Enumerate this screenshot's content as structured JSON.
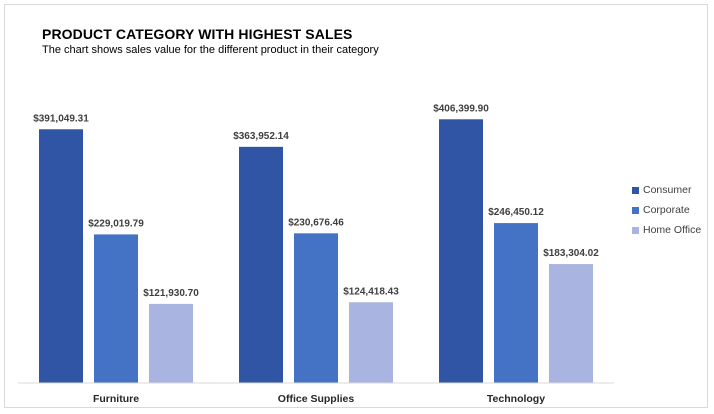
{
  "chart_data": {
    "type": "bar",
    "title": "PRODUCT CATEGORY WITH HIGHEST SALES",
    "subtitle": "The chart shows sales value for the different product in their category",
    "categories": [
      "Furniture",
      "Office Supplies",
      "Technology"
    ],
    "series": [
      {
        "name": "Consumer",
        "color": "#2f55a4",
        "values": [
          391049.31,
          363952.14,
          406399.9
        ],
        "labels": [
          "$391,049.31",
          "$363,952.14",
          "$406,399.90"
        ]
      },
      {
        "name": "Corporate",
        "color": "#4472c4",
        "values": [
          229019.79,
          230676.46,
          246450.12
        ],
        "labels": [
          "$229,019.79",
          "$230,676.46",
          "$246,450.12"
        ]
      },
      {
        "name": "Home Office",
        "color": "#a9b5e0",
        "values": [
          121930.7,
          124418.43,
          183304.02
        ],
        "labels": [
          "$121,930.70",
          "$124,418.43",
          "$183,304.02"
        ]
      }
    ],
    "ylim": [
      0,
      450000
    ],
    "grid": false,
    "legend": "right"
  }
}
